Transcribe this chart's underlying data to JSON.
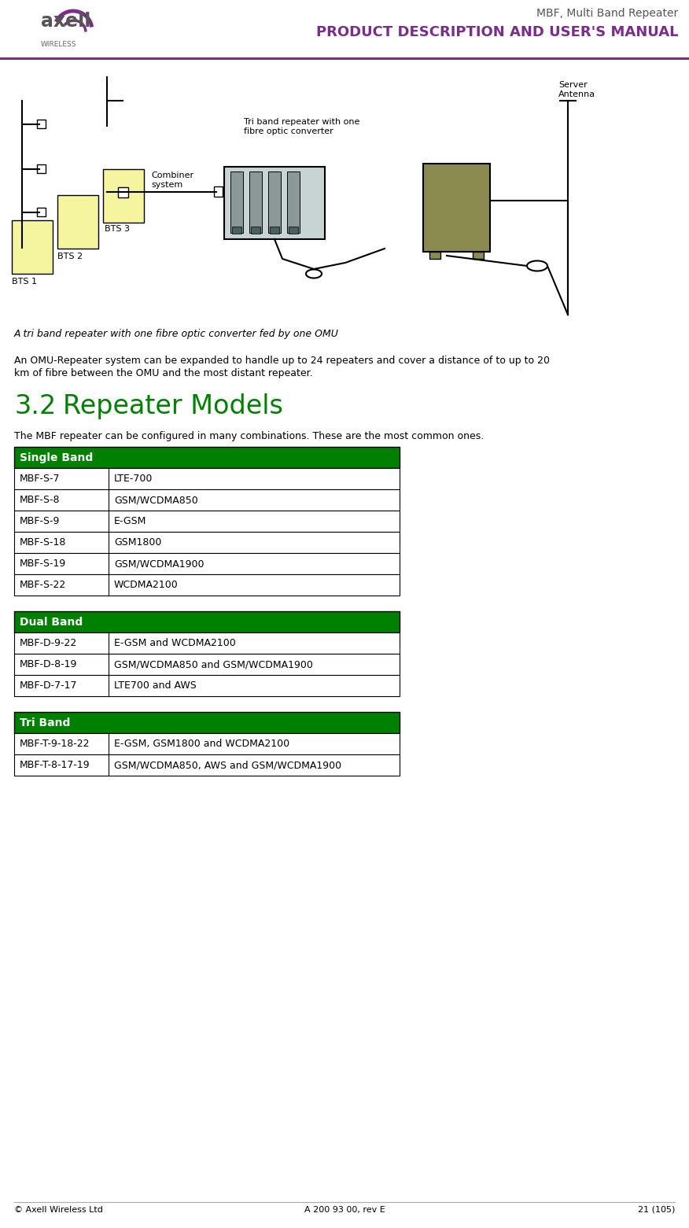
{
  "header_line_color": "#7B2D8B",
  "header_top_text": "MBF, Multi Band Repeater",
  "header_bottom_text": "PRODUCT DESCRIPTION AND USER'S MANUAL",
  "header_top_color": "#555555",
  "header_bottom_color": "#7B2D8B",
  "caption_italic": "A tri band repeater with one fibre optic converter fed by one OMU",
  "paragraph_text_line1": "An OMU-Repeater system can be expanded to handle up to 24 repeaters and cover a distance of to up to 20",
  "paragraph_text_line2": "km of fibre between the OMU and the most distant repeater.",
  "section_number": "3.2",
  "section_title": "Repeater Models",
  "section_intro": "The MBF repeater can be configured in many combinations. These are the most common ones.",
  "section_color": "#008000",
  "table_header_bg": "#008000",
  "table_header_text_color": "#ffffff",
  "table_row_bg": "#ffffff",
  "table_border_color": "#000000",
  "tables": [
    {
      "header": "Single Band",
      "rows": [
        [
          "MBF-S-7",
          "LTE-700"
        ],
        [
          "MBF-S-8",
          "GSM/WCDMA850"
        ],
        [
          "MBF-S-9",
          "E-GSM"
        ],
        [
          "MBF-S-18",
          "GSM1800"
        ],
        [
          "MBF-S-19",
          "GSM/WCDMA1900"
        ],
        [
          "MBF-S-22",
          "WCDMA2100"
        ]
      ]
    },
    {
      "header": "Dual Band",
      "rows": [
        [
          "MBF-D-9-22",
          "E-GSM and WCDMA2100"
        ],
        [
          "MBF-D-8-19",
          "GSM/WCDMA850 and GSM/WCDMA1900"
        ],
        [
          "MBF-D-7-17",
          "LTE700 and AWS"
        ]
      ]
    },
    {
      "header": "Tri Band",
      "rows": [
        [
          "MBF-T-9-18-22",
          "E-GSM, GSM1800 and WCDMA2100"
        ],
        [
          "MBF-T-8-17-19",
          "GSM/WCDMA850, AWS and GSM/WCDMA1900"
        ]
      ]
    }
  ],
  "footer_left": "© Axell Wireless Ltd",
  "footer_center": "A 200 93 00, rev E",
  "footer_right": "21 (105)",
  "bts_yellow": "#F5F5A0",
  "bts_olive": "#8B8B50",
  "repeater_teal": "#607878",
  "antenna_line_color": "#000000"
}
